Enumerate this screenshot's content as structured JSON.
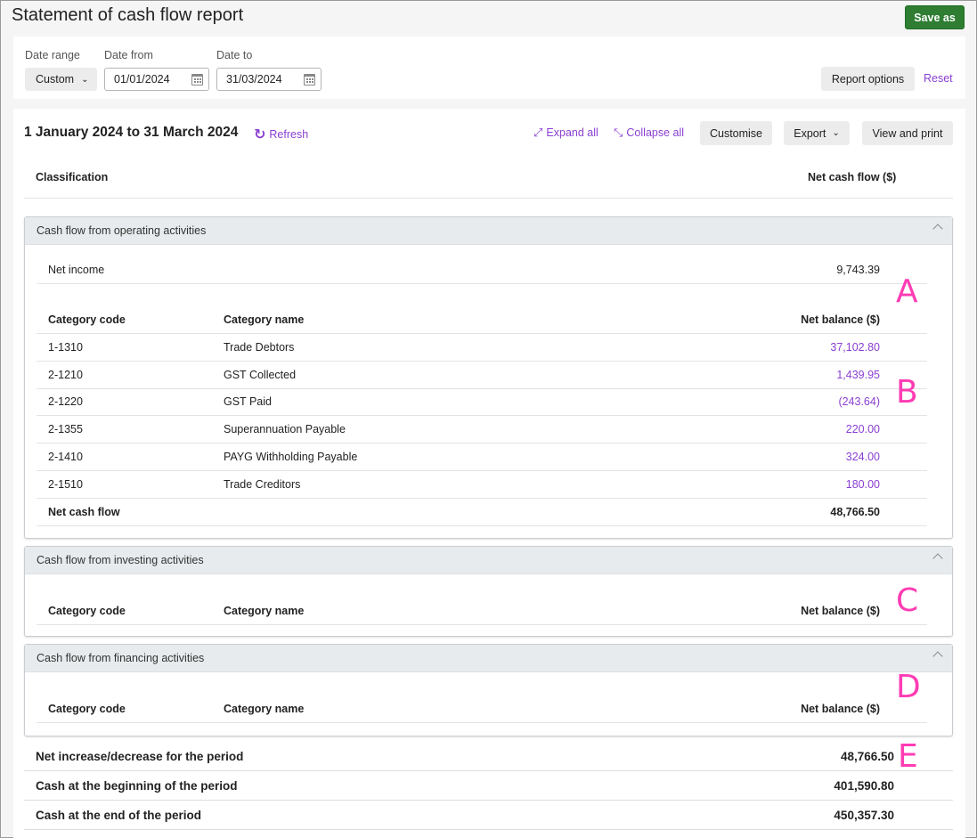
{
  "page": {
    "title": "Statement of cash flow report",
    "save_label": "Save as"
  },
  "filters": {
    "date_range_label": "Date range",
    "date_range_value": "Custom",
    "date_from_label": "Date from",
    "date_from_value": "01/01/2024",
    "date_to_label": "Date to",
    "date_to_value": "31/03/2024",
    "report_options_label": "Report options",
    "reset_label": "Reset"
  },
  "report": {
    "period": "1 January 2024 to 31 March 2024",
    "refresh_label": "Refresh",
    "expand_all_label": "Expand all",
    "collapse_all_label": "Collapse all",
    "customise_label": "Customise",
    "export_label": "Export",
    "view_print_label": "View and print",
    "col_classification": "Classification",
    "col_net_cash_flow": "Net cash flow ($)"
  },
  "operating": {
    "title": "Cash flow from operating activities",
    "net_income_label": "Net income",
    "net_income_value": "9,743.39",
    "col_code": "Category code",
    "col_name": "Category name",
    "col_balance": "Net balance ($)",
    "rows": [
      {
        "code": "1-1310",
        "name": "Trade Debtors",
        "balance": "37,102.80"
      },
      {
        "code": "2-1210",
        "name": "GST Collected",
        "balance": "1,439.95"
      },
      {
        "code": "2-1220",
        "name": "GST Paid",
        "balance": "(243.64)"
      },
      {
        "code": "2-1355",
        "name": "Superannuation Payable",
        "balance": "220.00"
      },
      {
        "code": "2-1410",
        "name": "PAYG Withholding Payable",
        "balance": "324.00"
      },
      {
        "code": "2-1510",
        "name": "Trade Creditors",
        "balance": "180.00"
      }
    ],
    "net_cash_flow_label": "Net cash flow",
    "net_cash_flow_value": "48,766.50"
  },
  "investing": {
    "title": "Cash flow from investing activities",
    "col_code": "Category code",
    "col_name": "Category name",
    "col_balance": "Net balance ($)"
  },
  "financing": {
    "title": "Cash flow from financing activities",
    "col_code": "Category code",
    "col_name": "Category name",
    "col_balance": "Net balance ($)"
  },
  "summary": [
    {
      "label": "Net increase/decrease for the period",
      "value": "48,766.50"
    },
    {
      "label": "Cash at the beginning of the period",
      "value": "401,590.80"
    },
    {
      "label": "Cash at the end of the period",
      "value": "450,357.30"
    }
  ],
  "markers": {
    "a": "A",
    "b": "B",
    "c": "C",
    "d": "D",
    "e": "E"
  },
  "colors": {
    "accent": "#8a3fd1",
    "save": "#2e7d32",
    "marker": "#ff3cb4"
  }
}
